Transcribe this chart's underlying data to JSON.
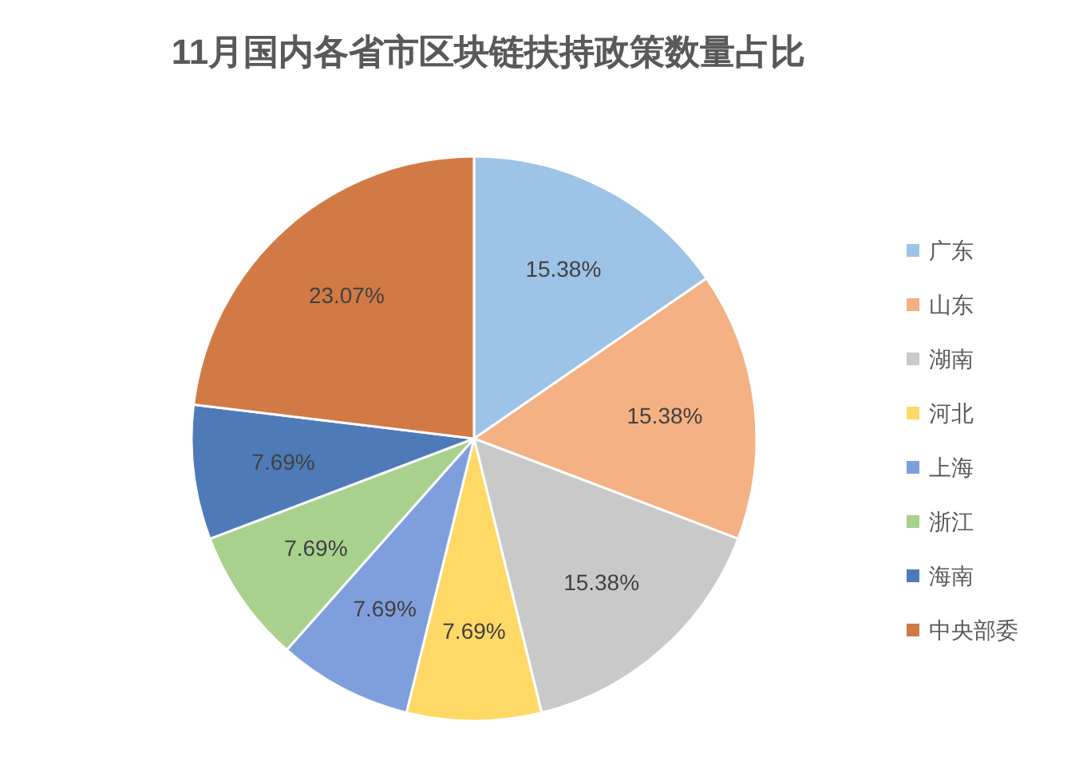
{
  "chart_data": {
    "type": "pie",
    "title": "11月国内各省市区块链扶持政策数量占比",
    "categories": [
      "广东",
      "山东",
      "湖南",
      "河北",
      "上海",
      "浙江",
      "海南",
      "中央部委"
    ],
    "values": [
      15.38,
      15.38,
      15.38,
      7.69,
      7.69,
      7.69,
      7.69,
      23.07
    ],
    "value_labels": [
      "15.38%",
      "15.38%",
      "15.38%",
      "7.69%",
      "7.69%",
      "7.69%",
      "7.69%",
      "23.07%"
    ],
    "colors": [
      "#9dc3e6",
      "#f4b183",
      "#c9c9c9",
      "#ffd966",
      "#7f9fdc",
      "#a9d18e",
      "#4f7ab8",
      "#d27a45"
    ],
    "legend": "right"
  }
}
